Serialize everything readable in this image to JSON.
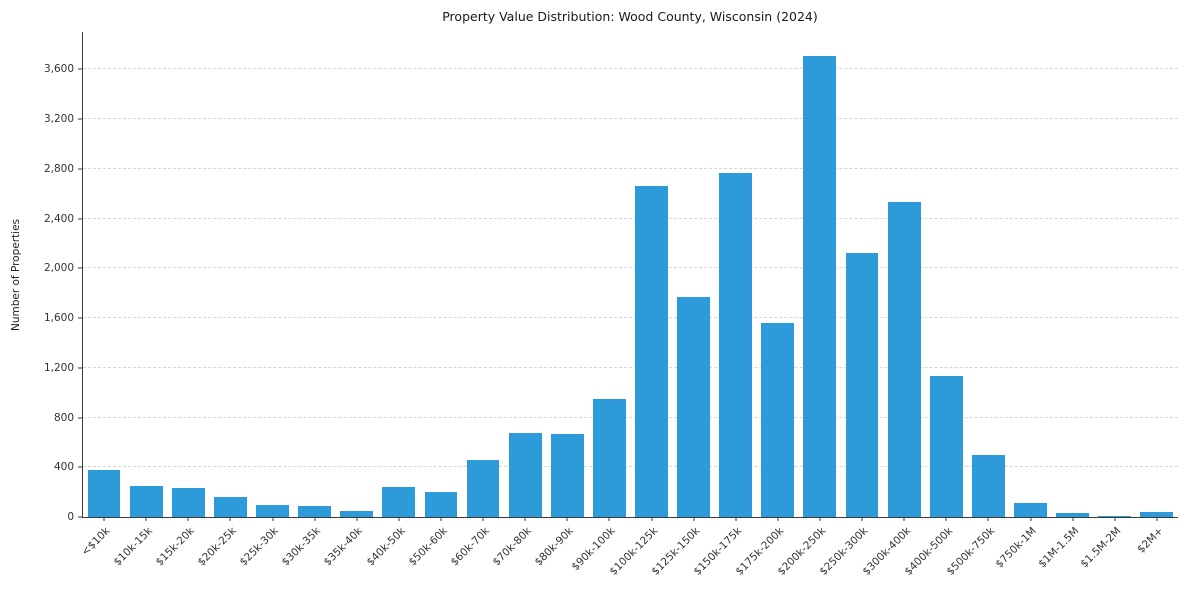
{
  "chart_data": {
    "type": "bar",
    "title": "Property Value Distribution: Wood County, Wisconsin (2024)",
    "xlabel": "",
    "ylabel": "Number of Properties",
    "categories": [
      "<$10k",
      "$10k-15k",
      "$15k-20k",
      "$20k-25k",
      "$25k-30k",
      "$30k-35k",
      "$35k-40k",
      "$40k-50k",
      "$50k-60k",
      "$60k-70k",
      "$70k-80k",
      "$80k-90k",
      "$90k-100k",
      "$100k-125k",
      "$125k-150k",
      "$150k-175k",
      "$175k-200k",
      "$200k-250k",
      "$250k-300k",
      "$300k-400k",
      "$400k-500k",
      "$500k-750k",
      "$750k-1M",
      "$1M-1.5M",
      "$1.5M-2M",
      "$2M+"
    ],
    "values": [
      380,
      250,
      235,
      160,
      100,
      90,
      45,
      240,
      200,
      460,
      675,
      665,
      950,
      2660,
      1770,
      2770,
      1560,
      3710,
      2120,
      2530,
      1130,
      500,
      110,
      35,
      5,
      40
    ],
    "yticks": [
      0,
      400,
      800,
      1200,
      1600,
      2000,
      2400,
      2800,
      3200,
      3600
    ],
    "ylim": [
      0,
      3900
    ],
    "grid": true,
    "legend": "none",
    "bar_color": "#2d9bd9",
    "grid_color": "#d6d6d6",
    "axis_color": "#3a3a3a"
  }
}
